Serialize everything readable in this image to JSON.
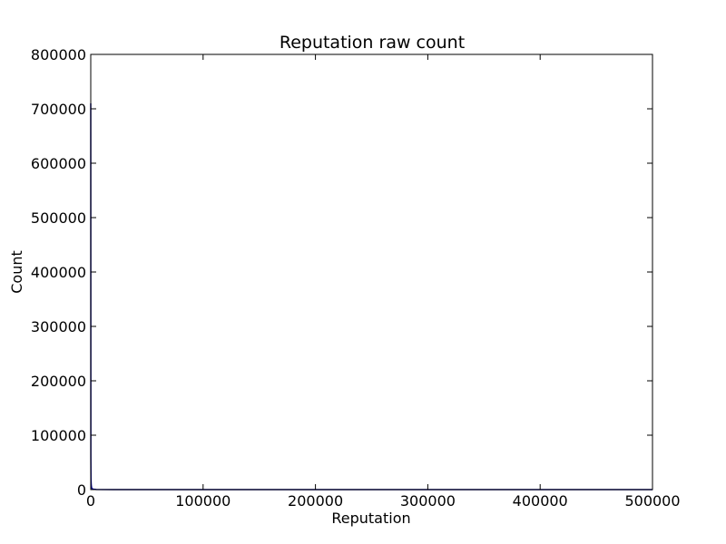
{
  "chart_data": {
    "type": "line",
    "title": "Reputation raw count",
    "xlabel": "Reputation",
    "ylabel": "Count",
    "xlim": [
      0,
      500000
    ],
    "ylim": [
      0,
      800000
    ],
    "xticks": [
      0,
      100000,
      200000,
      300000,
      400000,
      500000
    ],
    "xtick_labels": [
      "0",
      "100000",
      "200000",
      "300000",
      "400000",
      "500000"
    ],
    "yticks": [
      0,
      100000,
      200000,
      300000,
      400000,
      500000,
      600000,
      700000,
      800000
    ],
    "ytick_labels": [
      "0",
      "100000",
      "200000",
      "300000",
      "400000",
      "500000",
      "600000",
      "700000",
      "800000"
    ],
    "grid": false,
    "series": [
      {
        "color": "#00008b",
        "x": [
          1,
          100,
          200,
          400,
          700,
          1000,
          2000,
          5000,
          20000,
          100000,
          300000,
          500000
        ],
        "y": [
          710000,
          60000,
          20000,
          9000,
          4000,
          2000,
          900,
          300,
          60,
          5,
          1,
          0
        ]
      }
    ]
  }
}
